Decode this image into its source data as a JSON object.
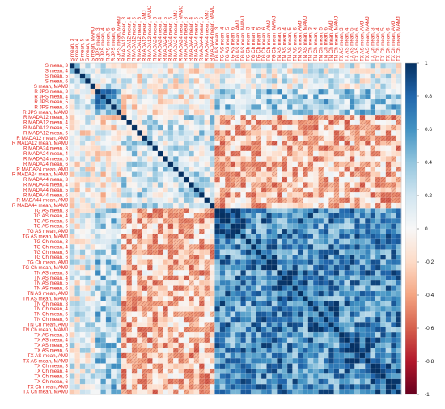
{
  "chart_data": {
    "type": "heatmap",
    "title": "",
    "xlabel": "",
    "ylabel": "",
    "row_labels": [
      "S mean, 3",
      "S mean, 4",
      "S mean, 5",
      "S mean, 6",
      "S mean, MAMJ",
      "R JPS mean, 3",
      "R JPS mean, 4",
      "R JPS mean, 5",
      "R JPS mean, 6",
      "R JPS mean, MAMJ",
      "R MADA12 mean, 3",
      "R MADA12 mean, 4",
      "R MADA12 mean, 5",
      "R MADA12 mean, 6",
      "R MADA12 mean, AMJ",
      "R MADA12 mean, MAMJ",
      "R MADA24 mean, 3",
      "R MADA24 mean, 4",
      "R MADA24 mean, 5",
      "R MADA24 mean, 6",
      "R MADA24 mean, AMJ",
      "R MADA24 mean, MAMJ",
      "R MADA44 mean, 3",
      "R MADA44 mean, 4",
      "R MADA44 mean, 5",
      "R MADA44 mean, 6",
      "R MADA44 mean, AMJ",
      "R MADA44 mean, MAMJ",
      "TG AS mean, 3",
      "TG AS mean, 4",
      "TG AS mean, 5",
      "TG AS mean, 6",
      "TG AS mean, AMJ",
      "TG AS mean, MAMJ",
      "TG Ch mean, 3",
      "TG Ch mean, 4",
      "TG Ch mean, 5",
      "TG Ch mean, 6",
      "TG Ch mean, AMJ",
      "TG Ch mean, MAMJ",
      "TN AS mean, 3",
      "TN AS mean, 4",
      "TN AS mean, 5",
      "TN AS mean, 6",
      "TN AS mean, AMJ",
      "TN AS mean, MAMJ",
      "TN Ch mean, 3",
      "TN Ch mean, 4",
      "TN Ch mean, 5",
      "TN Ch mean, 6",
      "TN Ch mean, AMJ",
      "TN Ch mean, MAMJ",
      "TX AS mean, 3",
      "TX AS mean, 4",
      "TX AS mean, 5",
      "TX AS mean, 6",
      "TX AS mean, AMJ",
      "TX AS mean, MAMJ",
      "TX Ch mean, 3",
      "TX Ch mean, 4",
      "TX Ch mean, 5",
      "TX Ch mean, 6",
      "TX Ch mean, AMJ",
      "TX Ch mean, MAMJ"
    ],
    "column_labels_same_as_rows": true,
    "value_range": [
      -1,
      1
    ],
    "diagonal_value": 1,
    "colorbar": {
      "position": "right",
      "ticks": [
        1,
        0.8,
        0.6,
        0.4,
        0.2,
        0,
        -0.2,
        -0.4,
        -0.6,
        -0.8,
        -1
      ],
      "tick_labels": [
        "1",
        "0.8",
        "0.6",
        "0.4",
        "0.2",
        "0",
        "-0.2",
        "-0.4",
        "-0.6",
        "-0.8",
        "-1"
      ],
      "colors": {
        "neg_extreme": "#67001f",
        "neg_strong": "#b2182b",
        "neg_mid": "#d6604d",
        "neg_light": "#f4a582",
        "neg_pale": "#fddbc7",
        "zero": "#f7f7f7",
        "pos_pale": "#d1e5f0",
        "pos_light": "#92c5de",
        "pos_mid": "#4393c3",
        "pos_strong": "#2166ac",
        "pos_extreme": "#053061"
      }
    },
    "blocks": {
      "precip_indices_rows": [
        0,
        27
      ],
      "temperature_indices_rows": [
        28,
        63
      ]
    },
    "block_correlation_estimates": [
      {
        "rows": "temperature",
        "cols": "temperature",
        "typical": 0.65
      },
      {
        "rows": "temperature",
        "cols": "R MADA",
        "typical": -0.25
      },
      {
        "rows": "R MADA",
        "cols": "R MADA",
        "typical": 0.15
      },
      {
        "rows": "S",
        "cols": "temperature",
        "typical": 0.1
      },
      {
        "rows": "R JPS",
        "cols": "temperature",
        "typical": 0.3
      }
    ],
    "insignificant_cells_marked": "hatched",
    "grid": true,
    "legend": "colorbar right"
  }
}
